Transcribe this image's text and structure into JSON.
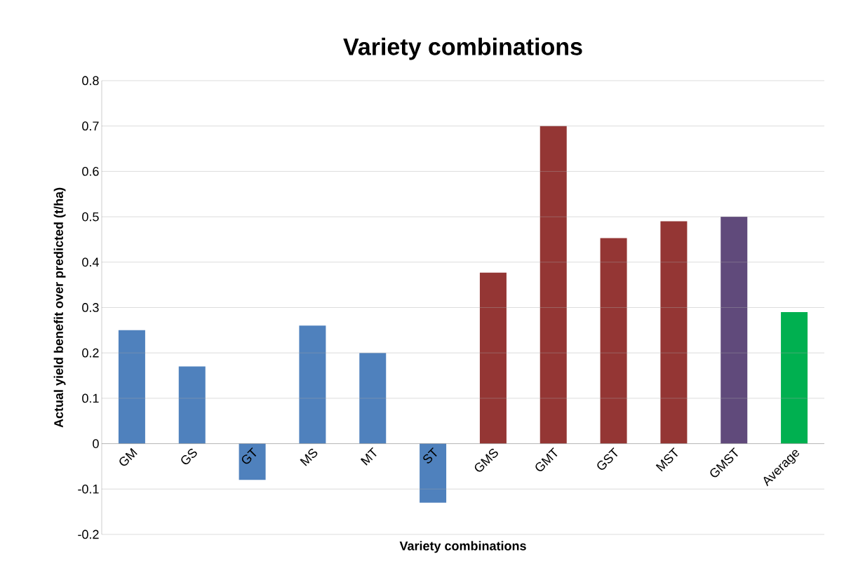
{
  "chart_data": {
    "type": "bar",
    "title": "Variety combinations",
    "xlabel": "Variety combinations",
    "ylabel": "Actual yield benefit over predicted (t/ha)",
    "categories": [
      "GM",
      "GS",
      "GT",
      "MS",
      "MT",
      "ST",
      "GMS",
      "GMT",
      "GST",
      "MST",
      "GMST",
      "Average"
    ],
    "values": [
      0.25,
      0.17,
      -0.08,
      0.26,
      0.2,
      -0.13,
      0.377,
      0.7,
      0.453,
      0.49,
      0.5,
      0.29
    ],
    "colors": [
      "#4f81bd",
      "#4f81bd",
      "#4f81bd",
      "#4f81bd",
      "#4f81bd",
      "#4f81bd",
      "#943634",
      "#943634",
      "#943634",
      "#943634",
      "#604a7b",
      "#00b050"
    ],
    "ylim": [
      -0.2,
      0.8
    ],
    "yticks": [
      -0.2,
      -0.1,
      0,
      0.1,
      0.2,
      0.3,
      0.4,
      0.5,
      0.6,
      0.7,
      0.8
    ],
    "grid": "y"
  }
}
